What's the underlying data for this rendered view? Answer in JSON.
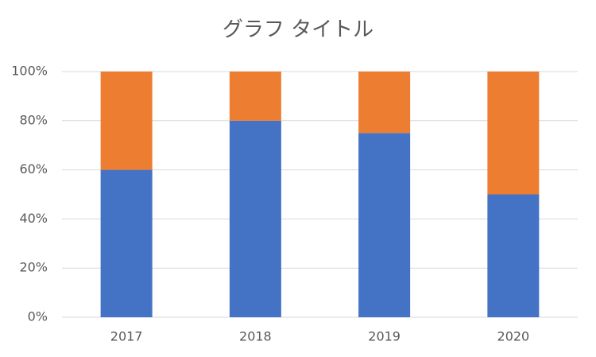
{
  "chart_data": {
    "type": "stacked_bar",
    "title": "グラフ タイトル",
    "categories": [
      "2017",
      "2018",
      "2019",
      "2020"
    ],
    "series": [
      {
        "color": "#4472c4",
        "values": [
          60,
          80,
          75,
          50
        ]
      },
      {
        "color": "#ed7d31",
        "values": [
          40,
          20,
          25,
          50
        ]
      }
    ],
    "ylim": [
      0,
      100
    ],
    "yticks": [
      {
        "value": 0,
        "label": "0%"
      },
      {
        "value": 20,
        "label": "20%"
      },
      {
        "value": 40,
        "label": "40%"
      },
      {
        "value": 60,
        "label": "60%"
      },
      {
        "value": 80,
        "label": "80%"
      },
      {
        "value": 100,
        "label": "100%"
      }
    ],
    "grid": true
  }
}
